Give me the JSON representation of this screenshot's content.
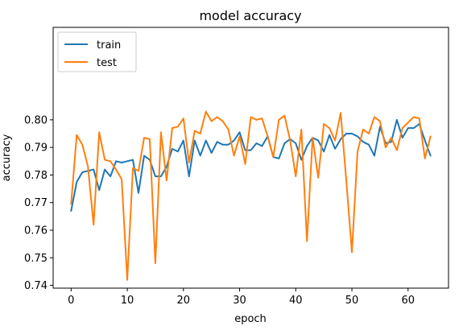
{
  "chart_data": {
    "type": "line",
    "title": "model accuracy",
    "xlabel": "epoch",
    "ylabel": "accuracy",
    "xlim": [
      -3.2,
      67.2
    ],
    "ylim": [
      0.739,
      0.8335
    ],
    "xticks": [
      0,
      10,
      20,
      30,
      40,
      50,
      60
    ],
    "yticks": [
      0.74,
      0.75,
      0.76,
      0.77,
      0.78,
      0.79,
      0.8
    ],
    "ytick_labels": [
      "0.74",
      "0.75",
      "0.76",
      "0.77",
      "0.78",
      "0.79",
      "0.80"
    ],
    "grid": false,
    "legend_placement": "top-left",
    "series": [
      {
        "name": "train",
        "color": "#1f77b4",
        "x": [
          0,
          1,
          2,
          3,
          4,
          5,
          6,
          7,
          8,
          9,
          10,
          11,
          12,
          13,
          14,
          15,
          16,
          17,
          18,
          19,
          20,
          21,
          22,
          23,
          24,
          25,
          26,
          27,
          28,
          29,
          30,
          31,
          32,
          33,
          34,
          35,
          36,
          37,
          38,
          39,
          40,
          41,
          42,
          43,
          44,
          45,
          46,
          47,
          48,
          49,
          50,
          51,
          52,
          53,
          54,
          55,
          56,
          57,
          58,
          59,
          60,
          61,
          62,
          63,
          64
        ],
        "values": [
          0.767,
          0.7775,
          0.781,
          0.7815,
          0.782,
          0.7745,
          0.782,
          0.7795,
          0.785,
          0.7845,
          0.785,
          0.7855,
          0.7735,
          0.787,
          0.7855,
          0.7795,
          0.7795,
          0.783,
          0.7895,
          0.7885,
          0.7925,
          0.7795,
          0.7925,
          0.787,
          0.7925,
          0.788,
          0.792,
          0.791,
          0.791,
          0.7925,
          0.7955,
          0.789,
          0.789,
          0.7915,
          0.7905,
          0.794,
          0.7865,
          0.786,
          0.7915,
          0.793,
          0.7915,
          0.7855,
          0.7905,
          0.7935,
          0.7925,
          0.7885,
          0.7945,
          0.7895,
          0.793,
          0.795,
          0.795,
          0.794,
          0.792,
          0.791,
          0.787,
          0.7975,
          0.7915,
          0.792,
          0.8,
          0.7935,
          0.797,
          0.797,
          0.7985,
          0.7925,
          0.787
        ]
      },
      {
        "name": "test",
        "color": "#ff7f0e",
        "x": [
          0,
          1,
          2,
          3,
          4,
          5,
          6,
          7,
          8,
          9,
          10,
          11,
          12,
          13,
          14,
          15,
          16,
          17,
          18,
          19,
          20,
          21,
          22,
          23,
          24,
          25,
          26,
          27,
          28,
          29,
          30,
          31,
          32,
          33,
          34,
          35,
          36,
          37,
          38,
          39,
          40,
          41,
          42,
          43,
          44,
          45,
          46,
          47,
          48,
          49,
          50,
          51,
          52,
          53,
          54,
          55,
          56,
          57,
          58,
          59,
          60,
          61,
          62,
          63,
          64
        ],
        "values": [
          0.7695,
          0.7945,
          0.791,
          0.783,
          0.762,
          0.7955,
          0.7855,
          0.785,
          0.782,
          0.7785,
          0.742,
          0.7825,
          0.7815,
          0.7935,
          0.793,
          0.748,
          0.7955,
          0.778,
          0.797,
          0.7975,
          0.8005,
          0.7845,
          0.796,
          0.795,
          0.803,
          0.7995,
          0.801,
          0.7995,
          0.7965,
          0.787,
          0.794,
          0.784,
          0.801,
          0.8,
          0.8005,
          0.794,
          0.7865,
          0.8,
          0.8015,
          0.7925,
          0.7795,
          0.7965,
          0.756,
          0.7935,
          0.779,
          0.7985,
          0.797,
          0.7925,
          0.8025,
          0.778,
          0.752,
          0.7885,
          0.7965,
          0.795,
          0.801,
          0.7995,
          0.79,
          0.7935,
          0.789,
          0.797,
          0.799,
          0.801,
          0.8005,
          0.786,
          0.794
        ]
      }
    ]
  }
}
